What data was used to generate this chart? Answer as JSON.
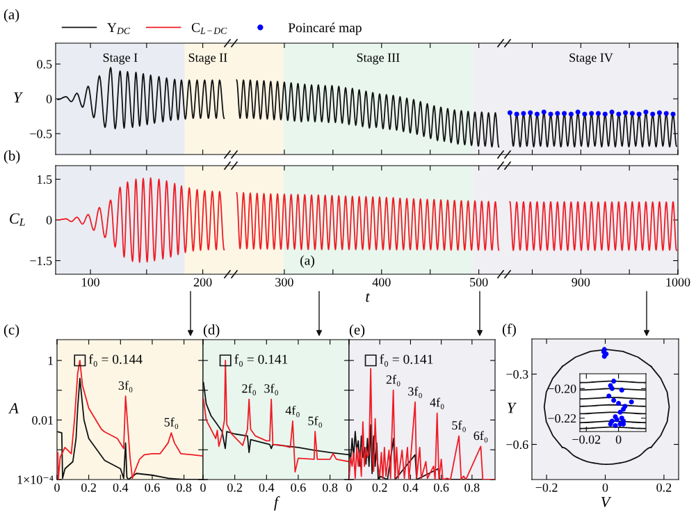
{
  "chart_data": [
    {
      "type": "line",
      "title": "(a)",
      "ylabel": "Y",
      "tick_labels": "y",
      "xlim": [
        69,
        225
      ],
      "ylim": [
        -0.8,
        0.8
      ],
      "xticks": [
        100,
        {
          "value": 150,
          "label": null
        },
        200
      ],
      "yticks": [
        {
          "value": -0.5,
          "label": "−0.5"
        },
        0,
        0.5
      ],
      "bands": [
        {
          "axis": "x",
          "from": 69,
          "to": 184,
          "label": "Stage I",
          "color": "#e9edf3"
        },
        {
          "axis": "x",
          "from": 184,
          "to": 225,
          "label": "Stage II",
          "color": "#fdf6e5"
        }
      ],
      "series": [
        {
          "name": "Y$_{DC}$",
          "color": "#111111",
          "x": [
            71,
            78.3,
            83,
            88,
            93,
            98,
            103,
            108,
            113,
            118,
            122,
            126.4,
            130,
            133,
            137.5,
            140.5,
            143.8,
            147,
            150.5,
            153.6,
            157,
            161,
            164.5,
            167.8,
            171.5,
            175,
            178,
            181,
            184.5,
            188,
            191.5,
            195,
            198,
            201.7,
            205,
            208.5,
            212,
            215,
            219
          ],
          "values": [
            -0.01,
            0.03,
            -0.04,
            0.08,
            -0.12,
            0.18,
            -0.27,
            0.33,
            -0.41,
            0.45,
            -0.43,
            0.4,
            -0.42,
            0.39,
            -0.41,
            0.38,
            -0.39,
            0.36,
            -0.37,
            0.34,
            -0.35,
            0.32,
            -0.33,
            0.3,
            -0.31,
            0.28,
            -0.3,
            0.27,
            -0.29,
            0.27,
            -0.28,
            0.27,
            -0.28,
            0.27,
            -0.28,
            0.27,
            -0.28,
            0.27,
            -0.28
          ]
        }
      ]
    },
    {
      "type": "line",
      "legend": "top left",
      "tick_labels": false,
      "xlim": [
        245,
        526
      ],
      "ylim": [
        -0.8,
        0.8
      ],
      "xticks": [
        300,
        {
          "value": 350,
          "label": null
        },
        400,
        {
          "value": 450,
          "label": null
        },
        500
      ],
      "bands": [
        {
          "axis": "x",
          "from": 245,
          "to": 299,
          "color": "#fdf6e5"
        },
        {
          "axis": "x",
          "from": 299,
          "to": 494,
          "label": "Stage III",
          "color": "#e9f6ee"
        },
        {
          "axis": "x",
          "from": 494,
          "to": 526,
          "color": "#efeff4"
        }
      ],
      "series": [
        {
          "color": "#111111",
          "x": [
            251,
            254.5,
            258,
            261.5,
            265,
            268.5,
            272,
            275.5,
            279,
            282.5,
            286,
            289.5,
            293,
            296.5,
            300,
            303.5,
            307,
            310.5,
            314,
            317.5,
            321,
            324.5,
            328,
            331.5,
            335,
            338.5,
            342,
            345.5,
            349,
            352.5,
            356,
            359.5,
            363,
            366.5,
            370,
            373.5,
            377,
            380.5,
            384,
            387.5,
            391,
            394.5,
            398,
            401.5,
            405,
            408.5,
            412,
            415.5,
            419,
            422.5,
            426,
            429.5,
            433,
            436.5,
            440,
            443.5,
            447,
            450.5,
            454,
            457.5,
            461,
            464.5,
            468,
            471.5,
            475,
            478.5,
            482,
            485.5,
            489,
            492.5,
            496,
            499.5,
            503,
            506.5,
            510,
            513.5,
            517,
            520.5
          ],
          "values": [
            0.27,
            -0.28,
            0.27,
            -0.28,
            0.27,
            -0.28,
            0.26,
            -0.29,
            0.26,
            -0.29,
            0.25,
            -0.3,
            0.25,
            -0.3,
            0.24,
            -0.31,
            0.23,
            -0.32,
            0.22,
            -0.33,
            0.21,
            -0.32,
            0.2,
            -0.33,
            0.2,
            -0.33,
            0.19,
            -0.34,
            0.19,
            -0.34,
            0.18,
            -0.35,
            0.16,
            -0.37,
            0.15,
            -0.38,
            0.13,
            -0.4,
            0.11,
            -0.42,
            0.09,
            -0.41,
            0.07,
            -0.43,
            0.06,
            -0.44,
            0.05,
            -0.45,
            0.03,
            -0.47,
            0.01,
            -0.49,
            -0.01,
            -0.51,
            -0.04,
            -0.54,
            -0.07,
            -0.57,
            -0.1,
            -0.6,
            -0.12,
            -0.61,
            -0.14,
            -0.63,
            -0.16,
            -0.65,
            -0.17,
            -0.66,
            -0.18,
            -0.67,
            -0.19,
            -0.68,
            -0.19,
            -0.68,
            -0.2,
            -0.69,
            -0.2,
            -0.69
          ]
        }
      ]
    },
    {
      "type": "line",
      "tick_labels": false,
      "xlim": [
        821,
        1000
      ],
      "ylim": [
        -0.8,
        0.8
      ],
      "xticks": [
        {
          "value": 850,
          "label": null
        },
        900,
        {
          "value": 950,
          "label": null
        },
        1000
      ],
      "yticks": [
        {
          "value": -0.5,
          "label": null
        },
        {
          "value": 0,
          "label": null
        },
        {
          "value": 0.5,
          "label": null
        }
      ],
      "bands": [
        {
          "axis": "x",
          "from": 821,
          "to": 1000,
          "label": "Stage IV",
          "color": "#efeff4"
        }
      ],
      "series": [
        {
          "color": "#111111",
          "x": [
            827,
            830.5,
            834,
            837.5,
            841,
            844.5,
            848,
            851.5,
            855,
            858.5,
            862,
            865.5,
            869,
            872.5,
            876,
            879.5,
            883,
            886.5,
            890,
            893.5,
            897,
            900.5,
            904,
            907.5,
            911,
            914.5,
            918,
            921.5,
            925,
            928.5,
            932,
            935.5,
            939,
            942.5,
            946,
            949.5,
            953,
            956.5,
            960,
            963.5,
            967,
            970.5,
            974,
            977.5,
            981,
            984.5,
            988,
            991.5,
            995,
            998.5
          ],
          "values": [
            -0.2,
            -0.68,
            -0.22,
            -0.69,
            -0.21,
            -0.68,
            -0.2,
            -0.69,
            -0.22,
            -0.68,
            -0.19,
            -0.69,
            -0.22,
            -0.68,
            -0.21,
            -0.69,
            -0.21,
            -0.68,
            -0.22,
            -0.69,
            -0.19,
            -0.68,
            -0.22,
            -0.69,
            -0.21,
            -0.68,
            -0.21,
            -0.69,
            -0.22,
            -0.68,
            -0.19,
            -0.69,
            -0.22,
            -0.68,
            -0.2,
            -0.69,
            -0.21,
            -0.68,
            -0.22,
            -0.69,
            -0.19,
            -0.68,
            -0.22,
            -0.69,
            -0.2,
            -0.68,
            -0.21,
            -0.69,
            -0.22,
            -0.68
          ]
        },
        {
          "type": "scatter",
          "name": "Poincaré map",
          "color": "#0000ff",
          "x": [
            827,
            834,
            841,
            848,
            855,
            862,
            869,
            876,
            883,
            890,
            897,
            904,
            911,
            918,
            925,
            932,
            939,
            946,
            953,
            960,
            967,
            974,
            981,
            988,
            995
          ],
          "values": [
            -0.2,
            -0.22,
            -0.21,
            -0.2,
            -0.22,
            -0.19,
            -0.22,
            -0.21,
            -0.21,
            -0.22,
            -0.19,
            -0.22,
            -0.21,
            -0.21,
            -0.22,
            -0.19,
            -0.22,
            -0.2,
            -0.21,
            -0.22,
            -0.19,
            -0.22,
            -0.2,
            -0.21,
            -0.22
          ]
        }
      ]
    },
    {
      "type": "line",
      "title": "(b)",
      "ylabel": "C$_{L}$",
      "xlim": [
        69,
        225
      ],
      "ylim": [
        -2,
        2
      ],
      "xticks": [
        100,
        {
          "value": 150,
          "label": null
        },
        200
      ],
      "yticks": [
        {
          "value": -1.5,
          "label": "−1.5"
        },
        0,
        1.5
      ],
      "bands": [
        {
          "axis": "x",
          "from": 69,
          "to": 184,
          "color": "#e9edf3"
        },
        {
          "axis": "x",
          "from": 184,
          "to": 225,
          "color": "#fdf6e5"
        }
      ],
      "series": [
        {
          "name": "C$_{L−DC}$",
          "color": "#ee1c25",
          "x": [
            71,
            78.3,
            83,
            88,
            93,
            98,
            103,
            108,
            113,
            118,
            122,
            126.4,
            130,
            133,
            137.5,
            140.5,
            143.8,
            147,
            150.5,
            153.6,
            157,
            161,
            164.5,
            167.8,
            171.5,
            175,
            178,
            181,
            184.5,
            188,
            191.5,
            195,
            198,
            201.7,
            205,
            208.5,
            212,
            215,
            219
          ],
          "values": [
            0.0,
            0.04,
            -0.06,
            0.1,
            -0.15,
            0.2,
            -0.38,
            0.46,
            -0.65,
            0.73,
            -1.0,
            1.21,
            -1.37,
            1.4,
            -1.53,
            1.5,
            -1.56,
            1.53,
            -1.55,
            1.55,
            -1.5,
            1.5,
            -1.44,
            1.44,
            -1.37,
            1.34,
            -1.28,
            1.25,
            -1.2,
            1.18,
            -1.14,
            1.12,
            -1.12,
            1.08,
            -1.1,
            1.06,
            -1.1,
            1.05,
            -1.1
          ]
        }
      ]
    },
    {
      "type": "line",
      "xlabel": "t",
      "tick_labels": "x",
      "xlim": [
        245,
        526
      ],
      "ylim": [
        -2,
        2
      ],
      "xticks": [
        300,
        {
          "value": 350,
          "label": null
        },
        400,
        {
          "value": 450,
          "label": null
        },
        500
      ],
      "annotations": [
        "(a)"
      ],
      "bands": [
        {
          "axis": "x",
          "from": 245,
          "to": 299,
          "color": "#fdf6e5"
        },
        {
          "axis": "x",
          "from": 299,
          "to": 494,
          "color": "#e9f6ee"
        },
        {
          "axis": "x",
          "from": 494,
          "to": 526,
          "color": "#efeff4"
        }
      ],
      "series": [
        {
          "color": "#ee1c25",
          "x": [
            251,
            254.5,
            258,
            261.5,
            265,
            268.5,
            272,
            275.5,
            279,
            282.5,
            286,
            289.5,
            293,
            296.5,
            300,
            303.5,
            307,
            310.5,
            314,
            317.5,
            321,
            324.5,
            328,
            331.5,
            335,
            338.5,
            342,
            345.5,
            349,
            352.5,
            356,
            359.5,
            363,
            366.5,
            370,
            373.5,
            377,
            380.5,
            384,
            387.5,
            391,
            394.5,
            398,
            401.5,
            405,
            408.5,
            412,
            415.5,
            419,
            422.5,
            426,
            429.5,
            433,
            436.5,
            440,
            443.5,
            447,
            450.5,
            454,
            457.5,
            461,
            464.5,
            468,
            471.5,
            475,
            478.5,
            482,
            485.5,
            489,
            492.5,
            496,
            499.5,
            503,
            506.5,
            510,
            513.5,
            517,
            520.5
          ],
          "values": [
            1.0,
            -1.06,
            1.0,
            -1.06,
            0.99,
            -1.07,
            0.98,
            -1.07,
            0.97,
            -1.07,
            0.96,
            -1.08,
            0.96,
            -1.08,
            0.95,
            -1.08,
            0.94,
            -1.08,
            0.94,
            -1.09,
            0.93,
            -1.09,
            0.92,
            -1.09,
            0.92,
            -1.09,
            0.91,
            -1.09,
            0.9,
            -1.09,
            0.89,
            -1.09,
            0.88,
            -1.09,
            0.87,
            -1.09,
            0.86,
            -1.09,
            0.86,
            -1.09,
            0.85,
            -1.1,
            0.84,
            -1.1,
            0.83,
            -1.1,
            0.82,
            -1.1,
            0.8,
            -1.1,
            0.79,
            -1.1,
            0.78,
            -1.1,
            0.77,
            -1.1,
            0.76,
            -1.1,
            0.75,
            -1.1,
            0.74,
            -1.11,
            0.73,
            -1.11,
            0.72,
            -1.11,
            0.71,
            -1.11,
            0.7,
            -1.11,
            0.7,
            -1.11,
            0.69,
            -1.11,
            0.68,
            -1.11,
            0.67,
            -1.11
          ]
        }
      ]
    },
    {
      "type": "line",
      "tick_labels": "x",
      "xlim": [
        821,
        1000
      ],
      "ylim": [
        -2,
        2
      ],
      "xticks": [
        {
          "value": 850,
          "label": null
        },
        900,
        {
          "value": 950,
          "label": null
        },
        1000
      ],
      "yticks": [
        {
          "value": -1.5,
          "label": null
        },
        {
          "value": 0,
          "label": null
        },
        {
          "value": 1.5,
          "label": null
        }
      ],
      "bands": [
        {
          "axis": "x",
          "from": 821,
          "to": 1000,
          "color": "#efeff4"
        }
      ],
      "series": [
        {
          "color": "#ee1c25",
          "x": [
            827,
            830.5,
            834,
            837.5,
            841,
            844.5,
            848,
            851.5,
            855,
            858.5,
            862,
            865.5,
            869,
            872.5,
            876,
            879.5,
            883,
            886.5,
            890,
            893.5,
            897,
            900.5,
            904,
            907.5,
            911,
            914.5,
            918,
            921.5,
            925,
            928.5,
            932,
            935.5,
            939,
            942.5,
            946,
            949.5,
            953,
            956.5,
            960,
            963.5,
            967,
            970.5,
            974,
            977.5,
            981,
            984.5,
            988,
            991.5,
            995,
            998.5
          ],
          "values": [
            0.67,
            -1.12,
            0.66,
            -1.11,
            0.67,
            -1.12,
            0.66,
            -1.11,
            0.67,
            -1.12,
            0.66,
            -1.11,
            0.67,
            -1.12,
            0.66,
            -1.11,
            0.67,
            -1.12,
            0.66,
            -1.11,
            0.67,
            -1.12,
            0.66,
            -1.11,
            0.67,
            -1.12,
            0.66,
            -1.11,
            0.67,
            -1.12,
            0.66,
            -1.11,
            0.67,
            -1.12,
            0.66,
            -1.11,
            0.67,
            -1.12,
            0.66,
            -1.11,
            0.67,
            -1.12,
            0.66,
            -1.11,
            0.67,
            -1.12,
            0.66,
            -1.11,
            0.67,
            -1.12
          ]
        }
      ]
    },
    {
      "type": "line",
      "title": "(c)",
      "ylabel": "A",
      "log": "y",
      "xlim": [
        0,
        0.92
      ],
      "ylim": [
        0.0001,
        5
      ],
      "xticks": [
        0,
        0.2,
        0.4,
        0.6,
        0.8
      ],
      "yticks": [
        {
          "value": 0.0001,
          "label": "1×10⁻⁴"
        },
        {
          "value": 0.001,
          "label": null
        },
        0.01,
        {
          "value": 0.1,
          "label": null
        },
        1
      ],
      "bands": [
        {
          "axis": "x",
          "from": 0,
          "to": 0.92,
          "color": "#fdf6e5"
        }
      ],
      "annotations": [
        {
          "text": "f₀ = 0.144",
          "x": 0.144,
          "y": 1
        },
        {
          "text": "3f₀",
          "x": 0.432,
          "y": 0.063
        },
        {
          "text": "5f₀",
          "x": 0.72,
          "y": 0.0037
        }
      ],
      "series": [
        {
          "color": "#111111",
          "x": [
            0.005,
            0.03,
            0.035,
            0.05,
            0.1,
            0.12,
            0.13,
            0.144,
            0.17,
            0.2,
            0.3,
            0.4,
            0.42,
            0.432,
            0.44,
            0.45,
            0.5,
            0.6,
            0.7,
            0.8,
            0.92
          ],
          "values": [
            0.004,
            0.0037,
            0.00011,
            0.00023,
            0.0004,
            0.0024,
            0.025,
            0.25,
            0.01,
            0.0024,
            0.00044,
            0.00023,
            0.00011,
            0.0017,
            0.00012,
            0.0001,
            0.00016,
            0.00014,
            0.00011,
            0.0001,
            0.0001
          ]
        },
        {
          "color": "#ee1c25",
          "x": [
            0.005,
            0.008,
            0.02,
            0.05,
            0.09,
            0.11,
            0.13,
            0.144,
            0.16,
            0.2,
            0.28,
            0.3,
            0.38,
            0.42,
            0.432,
            0.46,
            0.475,
            0.49,
            0.52,
            0.55,
            0.6,
            0.65,
            0.7,
            0.72,
            0.74,
            0.78,
            0.85,
            0.92
          ],
          "values": [
            0.0008,
            0.0001,
            0.00056,
            0.0012,
            0.00074,
            0.01,
            0.36,
            1,
            0.15,
            0.025,
            0.0049,
            0.004,
            0.0024,
            0.0011,
            0.063,
            0.00056,
            0.00011,
            0.00019,
            0.00048,
            0.00068,
            0.00074,
            0.00074,
            0.0017,
            0.0037,
            0.0017,
            0.00074,
            0.00068,
            0.00062
          ]
        }
      ]
    },
    {
      "type": "line",
      "title": "(d)",
      "xlabel": "f",
      "log": "y",
      "tick_labels": "x",
      "xlim": [
        0,
        0.92
      ],
      "ylim": [
        0.0001,
        5
      ],
      "xticks": [
        0,
        0.2,
        0.4,
        0.6,
        0.8
      ],
      "yticks": [
        {
          "value": 0.0001,
          "label": null
        },
        {
          "value": 0.001,
          "label": null
        },
        {
          "value": 0.01,
          "label": null
        },
        {
          "value": 0.1,
          "label": null
        },
        {
          "value": 1,
          "label": null
        }
      ],
      "bands": [
        {
          "axis": "x",
          "from": 0,
          "to": 0.92,
          "color": "#e9f6ee"
        }
      ],
      "annotations": [
        {
          "text": "f₀ = 0.141",
          "x": 0.141,
          "y": 1
        },
        {
          "text": "2f₀",
          "x": 0.29,
          "y": 0.05
        },
        {
          "text": "3f₀",
          "x": 0.43,
          "y": 0.05
        },
        {
          "text": "4f₀",
          "x": 0.565,
          "y": 0.0092
        },
        {
          "text": "5f₀",
          "x": 0.706,
          "y": 0.0041
        }
      ],
      "series": [
        {
          "color": "#111111",
          "x": [
            0.003,
            0.02,
            0.05,
            0.08,
            0.1,
            0.12,
            0.14,
            0.15,
            0.2,
            0.28,
            0.29,
            0.3,
            0.42,
            0.43,
            0.44,
            0.6,
            0.7,
            0.8,
            0.92
          ],
          "values": [
            0.18,
            0.035,
            0.014,
            0.0084,
            0.0059,
            0.0041,
            0.0011,
            0.0041,
            0.0034,
            0.0029,
            0.00081,
            0.0022,
            0.0015,
            0.0011,
            0.0015,
            0.0012,
            0.00097,
            0.00081,
            0.00068
          ]
        },
        {
          "color": "#ee1c25",
          "x": [
            0.003,
            0.02,
            0.05,
            0.08,
            0.09,
            0.1,
            0.12,
            0.135,
            0.141,
            0.15,
            0.18,
            0.25,
            0.28,
            0.29,
            0.3,
            0.33,
            0.4,
            0.42,
            0.43,
            0.44,
            0.5,
            0.55,
            0.565,
            0.58,
            0.6,
            0.7,
            0.706,
            0.72,
            0.8,
            0.82,
            0.84,
            0.92
          ],
          "values": [
            0.05,
            0.01,
            0.0049,
            0.0024,
            0.0045,
            0.0013,
            0.0034,
            0.01,
            1,
            0.0071,
            0.0034,
            0.0014,
            0.0049,
            0.05,
            0.0049,
            0.0029,
            0.002,
            0.002,
            0.05,
            0.0015,
            0.0014,
            0.0012,
            0.0092,
            0.00018,
            0.00052,
            0.00048,
            0.0041,
            0.00048,
            0.00048,
            0.00074,
            0.00048,
            0.0004
          ]
        }
      ]
    },
    {
      "type": "line",
      "title": "(e)",
      "log": "y",
      "tick_labels": "x",
      "xlim": [
        0,
        0.95
      ],
      "ylim": [
        0.0001,
        5
      ],
      "xticks": [
        0,
        0.2,
        0.4,
        0.6,
        0.8
      ],
      "yticks": [
        {
          "value": 0.0001,
          "label": null
        },
        {
          "value": 0.001,
          "label": null
        },
        {
          "value": 0.01,
          "label": null
        },
        {
          "value": 0.1,
          "label": null
        },
        {
          "value": 1,
          "label": null
        }
      ],
      "bands": [
        {
          "axis": "x",
          "from": 0,
          "to": 0.95,
          "color": "#efeff4"
        }
      ],
      "annotations": [
        {
          "text": "f₀ = 0.141",
          "x": 0.141,
          "y": 1
        },
        {
          "text": "2f₀",
          "x": 0.288,
          "y": 0.1
        },
        {
          "text": "3f₀",
          "x": 0.43,
          "y": 0.04
        },
        {
          "text": "4f₀",
          "x": 0.573,
          "y": 0.017
        },
        {
          "text": "5f₀",
          "x": 0.715,
          "y": 0.0029
        },
        {
          "text": "6f₀",
          "x": 0.857,
          "y": 0.0013
        }
      ],
      "series": [
        {
          "color": "#111111",
          "x": [
            0.0,
            0.01,
            0.02,
            0.03,
            0.04,
            0.05,
            0.06,
            0.07,
            0.08,
            0.09,
            0.1,
            0.11,
            0.12,
            0.13,
            0.141,
            0.15,
            0.16,
            0.17,
            0.18,
            0.19,
            0.2,
            0.25,
            0.29,
            0.3,
            0.43,
            0.44,
            0.58,
            0.59,
            0.95
          ],
          "values": [
            0.00097,
            0.0004,
            0.0024,
            0.00056,
            0.0041,
            0.00097,
            0.002,
            0.00028,
            0.0029,
            0.00056,
            0.0012,
            0.00033,
            0.0024,
            0.00028,
            0.0069,
            0.00016,
            0.0029,
            0.00028,
            0.0017,
            0.0001,
            0.00013,
            0.0001,
            0.0024,
            0.0001,
            0.00068,
            0.0001,
            0.00023,
            0.0001,
            0.0001
          ]
        },
        {
          "color": "#ee1c25",
          "x": [
            0.0,
            0.01,
            0.02,
            0.03,
            0.04,
            0.05,
            0.06,
            0.07,
            0.08,
            0.09,
            0.1,
            0.11,
            0.12,
            0.13,
            0.141,
            0.15,
            0.16,
            0.17,
            0.18,
            0.2,
            0.21,
            0.22,
            0.23,
            0.24,
            0.26,
            0.27,
            0.288,
            0.3,
            0.31,
            0.32,
            0.345,
            0.36,
            0.38,
            0.39,
            0.43,
            0.44,
            0.46,
            0.47,
            0.5,
            0.51,
            0.55,
            0.56,
            0.573,
            0.585,
            0.6,
            0.61,
            0.64,
            0.66,
            0.715,
            0.73,
            0.745,
            0.76,
            0.857,
            0.87,
            0.95
          ],
          "values": [
            0.0001,
            0.00056,
            0.00028,
            0.00081,
            0.00011,
            0.0012,
            0.00028,
            0.00097,
            0.00013,
            0.0087,
            0.00028,
            0.0012,
            0.00056,
            0.00081,
            0.53,
            0.00081,
            0.00019,
            0.011,
            0.00056,
            0.00013,
            0.00081,
            0.00011,
            0.0012,
            0.00013,
            0.00097,
            0.00011,
            0.1,
            0.00011,
            0.0012,
            0.00011,
            0.00097,
            0.00011,
            0.0012,
            0.0001,
            0.04,
            0.00011,
            0.0012,
            0.00011,
            0.0004,
            0.00011,
            0.00028,
            0.0001,
            0.017,
            0.0001,
            0.00048,
            0.0001,
            0.00011,
            0.0001,
            0.0029,
            0.0001,
            0.00013,
            0.0001,
            0.0013,
            0.0001,
            0.0001
          ]
        }
      ]
    },
    {
      "type": "line",
      "title": "(f)",
      "xlabel": "V",
      "ylabel": "Y",
      "xlim": [
        -0.25,
        0.25
      ],
      "ylim": [
        -0.75,
        -0.15
      ],
      "xticks": [
        {
          "value": -0.2,
          "label": "−0.2"
        },
        0,
        0.2
      ],
      "yticks": [
        {
          "value": -0.6,
          "label": "−0.6"
        },
        {
          "value": -0.3,
          "label": "−0.3"
        }
      ],
      "bands": [
        {
          "axis": "x",
          "from": -0.25,
          "to": 0.25,
          "color": "#efeff4"
        }
      ],
      "series": [
        {
          "color": "#111111",
          "x": [
            0.156,
            0.189,
            0.211,
            0.218,
            0.211,
            0.189,
            0.156,
            null,
            0.156,
            0.112,
            0.06,
            0.005,
            -0.05,
            -0.102,
            -0.146,
            null,
            -0.146,
            -0.179,
            -0.201,
            -0.208,
            -0.201,
            -0.179,
            -0.146,
            null,
            -0.146,
            -0.102,
            -0.05,
            0.005,
            0.06,
            0.112,
            0.156
          ],
          "values": [
            -0.613,
            -0.562,
            -0.503,
            -0.44,
            -0.377,
            -0.318,
            -0.267,
            null,
            -0.267,
            -0.228,
            -0.203,
            -0.195,
            -0.203,
            -0.228,
            -0.267,
            null,
            -0.267,
            -0.318,
            -0.377,
            -0.44,
            -0.503,
            -0.562,
            -0.613,
            null,
            -0.613,
            -0.652,
            -0.677,
            -0.685,
            -0.677,
            -0.652,
            -0.613
          ]
        },
        {
          "type": "scatter",
          "color": "#0000ff",
          "x": [
            -0.003,
            -0.005,
            0.003,
            -0.003
          ],
          "values": [
            -0.195,
            -0.205,
            -0.214,
            -0.224
          ]
        }
      ]
    },
    {
      "type": "line",
      "xlim": [
        -0.024,
        0.017
      ],
      "ylim": [
        -0.229,
        -0.19
      ],
      "xticks": [
        {
          "value": -0.02,
          "label": "−0.02"
        },
        0
      ],
      "yticks": [
        {
          "value": -0.22,
          "label": "−0.22"
        },
        {
          "value": -0.2,
          "label": "−0.20"
        }
      ],
      "series": [
        {
          "color": "#111111",
          "x": [
            -0.024,
            -0.004,
            0.017,
            null,
            -0.024,
            -0.004,
            0.017,
            null,
            -0.024,
            -0.004,
            0.017,
            null,
            -0.024,
            -0.004,
            0.017,
            null,
            -0.024,
            -0.004,
            0.017,
            null,
            -0.024,
            -0.004,
            0.017,
            null,
            -0.024,
            -0.004,
            0.017
          ],
          "values": [
            -0.196,
            -0.195,
            -0.196,
            null,
            -0.201,
            -0.2,
            -0.201,
            null,
            -0.207,
            -0.206,
            -0.207,
            null,
            -0.212,
            -0.211,
            -0.212,
            null,
            -0.217,
            -0.216,
            -0.217,
            null,
            -0.223,
            -0.222,
            -0.223,
            null,
            -0.227,
            -0.226,
            -0.227
          ]
        },
        {
          "type": "scatter",
          "color": "#0000ff",
          "x": [
            -0.003,
            -0.005,
            -0.004,
            0.002,
            -0.006,
            -0.003,
            0,
            0.008,
            0.004,
            0.003,
            0.001,
            -0.002,
            0.002,
            -0.004,
            -0.001,
            0.003,
            -0.005,
            -0.002,
            0.001,
            0.003
          ],
          "values": [
            -0.195,
            -0.198,
            -0.2,
            -0.201,
            -0.205,
            -0.208,
            -0.21,
            -0.209,
            -0.212,
            -0.214,
            -0.216,
            -0.219,
            -0.22,
            -0.222,
            -0.221,
            -0.222,
            -0.224,
            -0.225,
            -0.224,
            -0.224
          ]
        }
      ]
    }
  ]
}
